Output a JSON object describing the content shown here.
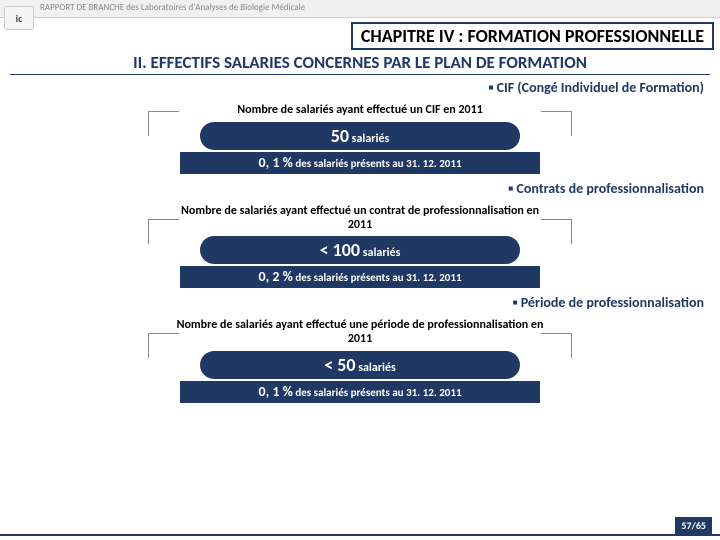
{
  "topbar": "RAPPORT DE BRANCHE des Laboratoires d'Analyses de Biologie Médicale",
  "logo": "ic",
  "chapter": "CHAPITRE IV : FORMATION PROFESSIONNELLE",
  "section": "II. EFFECTIFS SALARIES CONCERNES PAR LE PLAN DE FORMATION",
  "groups": [
    {
      "sub": "CIF (Congé Individuel de Formation)",
      "label": "Nombre de salariés ayant effectué un CIF en 2011",
      "value": "50",
      "unit": "salariés",
      "pct": "0, 1 %",
      "pct_text": "des salariés présents au 31. 12. 2011"
    },
    {
      "sub": "Contrats de professionnalisation",
      "label": "Nombre de salariés ayant effectué un contrat de professionnalisation en 2011",
      "value": "< 100",
      "unit": "salariés",
      "pct": "0, 2 %",
      "pct_text": "des salariés présents au 31. 12. 2011"
    },
    {
      "sub": "Période de professionnalisation",
      "label": "Nombre de salariés ayant effectué une période de professionnalisation en 2011",
      "value": "< 50",
      "unit": "salariés",
      "pct": "0, 1 %",
      "pct_text": "des salariés présents au 31. 12. 2011"
    }
  ],
  "page": "57/65",
  "colors": {
    "brand": "#1f3864",
    "text": "#000000",
    "muted": "#888888",
    "bg": "#ffffff"
  }
}
